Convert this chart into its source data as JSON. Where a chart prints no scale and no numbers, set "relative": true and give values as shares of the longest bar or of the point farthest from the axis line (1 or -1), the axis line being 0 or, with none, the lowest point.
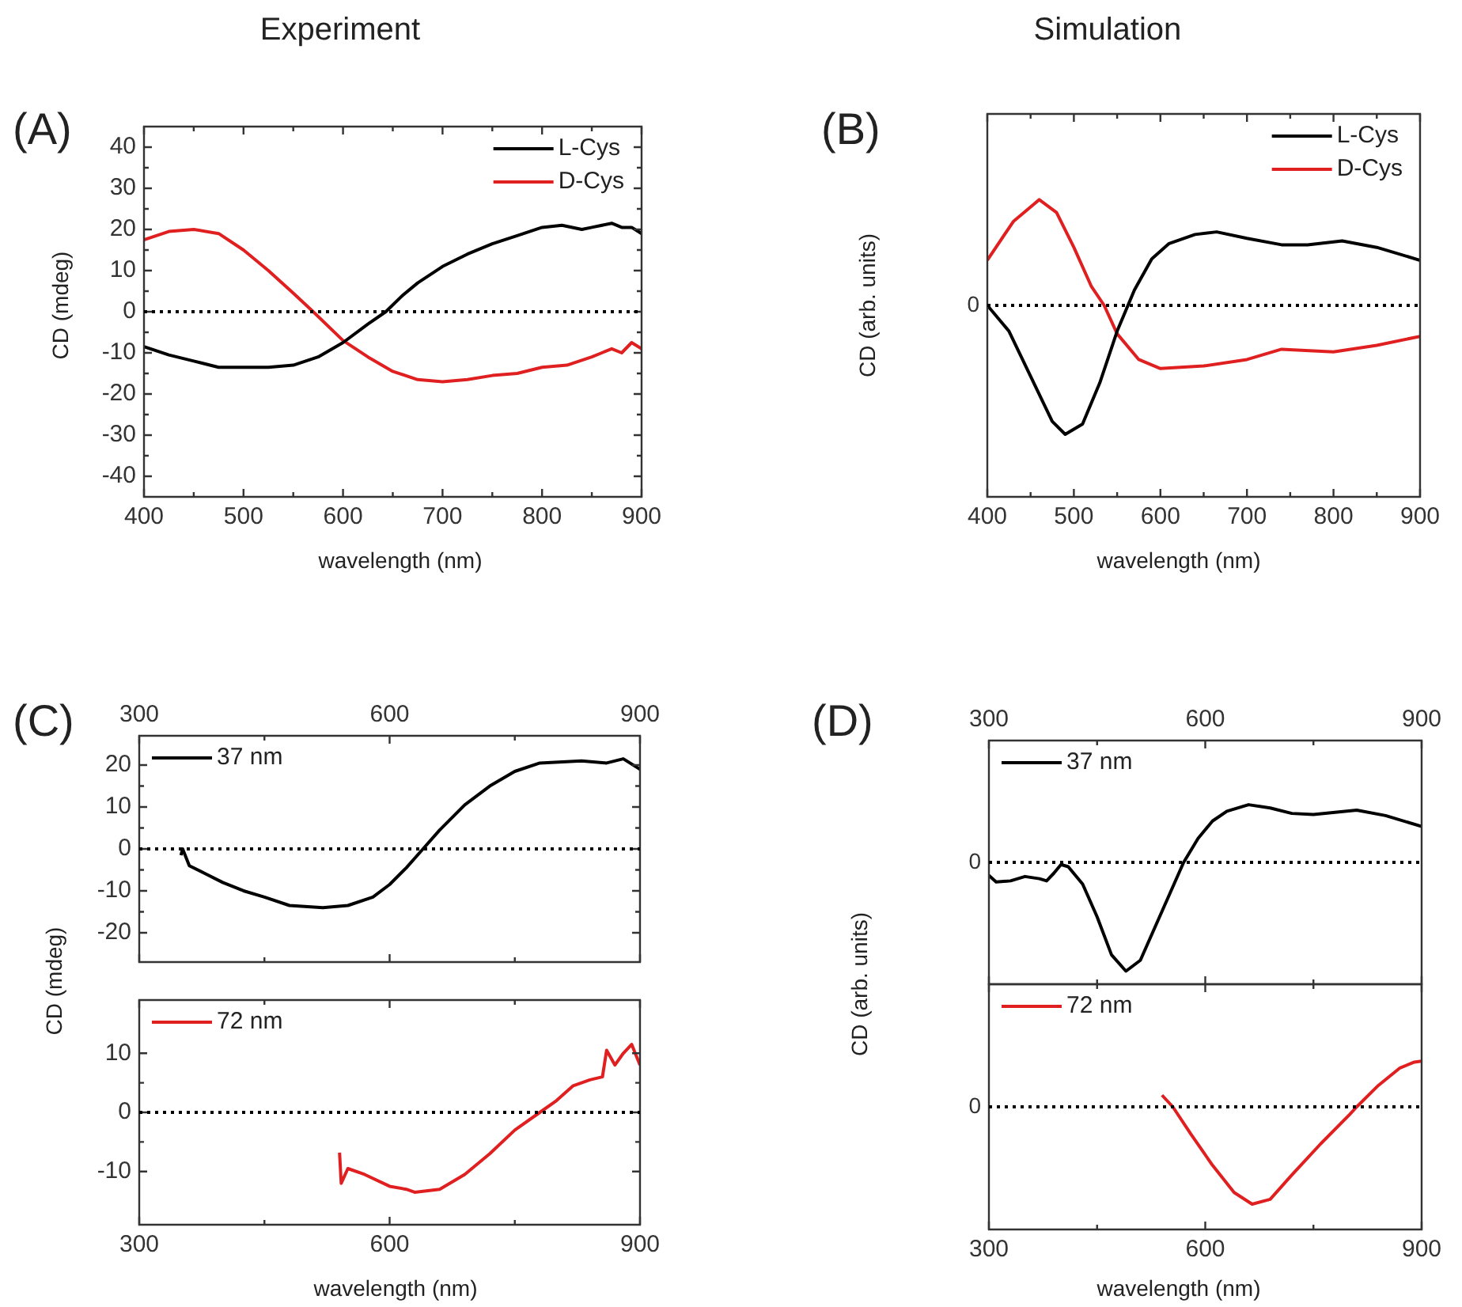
{
  "chart_data": [
    {
      "type": "line",
      "title": "Experiment",
      "annotations": [
        "(A)"
      ],
      "xlabel": "wavelength (nm)",
      "ylabel": "CD (mdeg)",
      "xlim": [
        400,
        900
      ],
      "xticks": [
        400,
        500,
        600,
        700,
        800,
        900
      ],
      "ylim": [
        -45,
        45
      ],
      "yticks": [
        -40,
        -30,
        -20,
        -10,
        0,
        10,
        20,
        30,
        40
      ],
      "legend": "top right",
      "ref_lines": [
        {
          "axis": "y",
          "value": 0,
          "line_style": "dotted"
        }
      ],
      "series": [
        {
          "name": "L-Cys",
          "color": "#000000",
          "x": [
            400,
            425,
            450,
            475,
            500,
            525,
            550,
            575,
            600,
            625,
            643,
            660,
            675,
            700,
            725,
            750,
            775,
            800,
            820,
            840,
            850,
            870,
            880,
            890,
            900
          ],
          "values": [
            -8.5,
            -10.5,
            -12,
            -13.5,
            -13.5,
            -13.5,
            -13,
            -11,
            -7.5,
            -3,
            0,
            4,
            7,
            11,
            14,
            16.5,
            18.5,
            20.5,
            21,
            20,
            20.5,
            21.5,
            20.5,
            20.5,
            19
          ]
        },
        {
          "name": "D-Cys",
          "color": "#e02020",
          "x": [
            400,
            425,
            450,
            475,
            500,
            525,
            550,
            570,
            600,
            625,
            650,
            675,
            700,
            725,
            750,
            775,
            800,
            825,
            850,
            860,
            870,
            880,
            890,
            900
          ],
          "values": [
            17.5,
            19.5,
            20,
            19,
            15,
            10,
            4.5,
            0,
            -7,
            -11,
            -14.5,
            -16.5,
            -17,
            -16.5,
            -15.5,
            -15,
            -13.5,
            -13,
            -11,
            -10,
            -9,
            -10,
            -7.5,
            -9
          ]
        }
      ]
    },
    {
      "type": "line",
      "title": "Simulation",
      "annotations": [
        "(B)"
      ],
      "xlabel": "wavelength (nm)",
      "ylabel": "CD (arb. units)",
      "relative": true,
      "xlim": [
        400,
        900
      ],
      "xticks": [
        400,
        500,
        600,
        700,
        800,
        900
      ],
      "legend": "top right",
      "ref_lines": [
        {
          "axis": "y",
          "value": 0,
          "label": "0",
          "line_style": "dotted"
        }
      ],
      "series": [
        {
          "name": "L-Cys",
          "color": "#000000",
          "x": [
            400,
            425,
            450,
            475,
            490,
            510,
            530,
            550,
            570,
            590,
            610,
            640,
            665,
            700,
            740,
            770,
            810,
            850,
            900
          ],
          "values": [
            0,
            -0.2,
            -0.55,
            -0.9,
            -1,
            -0.92,
            -0.6,
            -0.2,
            0.12,
            0.36,
            0.48,
            0.55,
            0.57,
            0.52,
            0.47,
            0.47,
            0.5,
            0.45,
            0.35
          ]
        },
        {
          "name": "D-Cys",
          "color": "#e02020",
          "x": [
            400,
            430,
            460,
            480,
            500,
            520,
            535,
            550,
            575,
            600,
            650,
            700,
            740,
            800,
            850,
            900
          ],
          "values": [
            0.35,
            0.65,
            0.82,
            0.72,
            0.45,
            0.15,
            0,
            -0.22,
            -0.42,
            -0.49,
            -0.47,
            -0.42,
            -0.34,
            -0.36,
            -0.31,
            -0.24
          ]
        }
      ]
    },
    {
      "type": "line",
      "annotations": [
        "(C)"
      ],
      "ylabel": "CD (mdeg)",
      "xlim": [
        300,
        900
      ],
      "xticks": [
        300,
        600,
        900
      ],
      "ylim": [
        -27,
        27
      ],
      "yticks": [
        -20,
        -10,
        0,
        10,
        20
      ],
      "legend": "top left",
      "ref_lines": [
        {
          "axis": "y",
          "value": 0,
          "line_style": "dotted"
        }
      ],
      "series": [
        {
          "name": "37 nm",
          "color": "#000000",
          "x": [
            350,
            352,
            360,
            380,
            400,
            425,
            450,
            480,
            520,
            550,
            580,
            600,
            620,
            640,
            660,
            690,
            720,
            750,
            780,
            830,
            860,
            880,
            900
          ],
          "values": [
            -1.5,
            0,
            -4,
            -6,
            -8,
            -10,
            -11.5,
            -13.5,
            -14,
            -13.5,
            -11.5,
            -8.5,
            -4.5,
            0,
            4.5,
            10.5,
            15,
            18.5,
            20.5,
            21,
            20.5,
            21.5,
            19
          ]
        }
      ]
    },
    {
      "type": "line",
      "xlabel": "wavelength (nm)",
      "xlim": [
        300,
        900
      ],
      "xticks": [
        300,
        600,
        900
      ],
      "ylim": [
        -19,
        19
      ],
      "yticks": [
        -10,
        0,
        10
      ],
      "legend": "top left",
      "ref_lines": [
        {
          "axis": "y",
          "value": 0,
          "line_style": "dotted"
        }
      ],
      "series": [
        {
          "name": "72 nm",
          "color": "#e02020",
          "x": [
            540,
            542,
            550,
            570,
            600,
            620,
            630,
            660,
            690,
            720,
            750,
            780,
            800,
            820,
            840,
            855,
            860,
            870,
            880,
            890,
            900
          ],
          "values": [
            -6.8,
            -12,
            -9.5,
            -10.5,
            -12.5,
            -13,
            -13.5,
            -13,
            -10.5,
            -7,
            -3,
            0,
            2,
            4.5,
            5.5,
            6,
            10.5,
            8,
            10,
            11.5,
            8
          ]
        }
      ]
    },
    {
      "type": "line",
      "annotations": [
        "(D)"
      ],
      "ylabel": "CD (arb. units)",
      "relative": true,
      "xlim": [
        300,
        900
      ],
      "xticks": [
        300,
        600,
        900
      ],
      "legend": "top left",
      "ref_lines": [
        {
          "axis": "y",
          "value": 0,
          "label": "0",
          "line_style": "dotted"
        }
      ],
      "series": [
        {
          "name": "37 nm",
          "color": "#000000",
          "x": [
            300,
            310,
            330,
            350,
            370,
            380,
            390,
            400,
            410,
            430,
            450,
            470,
            490,
            510,
            530,
            550,
            570,
            590,
            610,
            630,
            660,
            690,
            720,
            750,
            780,
            810,
            850,
            900
          ],
          "values": [
            -0.12,
            -0.18,
            -0.17,
            -0.13,
            -0.15,
            -0.17,
            -0.1,
            -0.02,
            -0.04,
            -0.2,
            -0.5,
            -0.85,
            -1,
            -0.9,
            -0.6,
            -0.3,
            0,
            0.22,
            0.38,
            0.47,
            0.53,
            0.5,
            0.45,
            0.44,
            0.46,
            0.48,
            0.43,
            0.33
          ]
        }
      ]
    },
    {
      "type": "line",
      "xlabel": "wavelength (nm)",
      "relative": true,
      "xlim": [
        300,
        900
      ],
      "xticks": [
        300,
        600,
        900
      ],
      "legend": "top left",
      "ref_lines": [
        {
          "axis": "y",
          "value": 0,
          "label": "0",
          "line_style": "dotted"
        }
      ],
      "series": [
        {
          "name": "72 nm",
          "color": "#e02020",
          "x": [
            540,
            555,
            580,
            610,
            640,
            665,
            690,
            720,
            760,
            800,
            810,
            840,
            870,
            890,
            900
          ],
          "values": [
            0.12,
            0,
            -0.28,
            -0.6,
            -0.88,
            -1,
            -0.95,
            -0.7,
            -0.38,
            -0.08,
            0,
            0.22,
            0.4,
            0.46,
            0.47
          ]
        }
      ]
    }
  ]
}
